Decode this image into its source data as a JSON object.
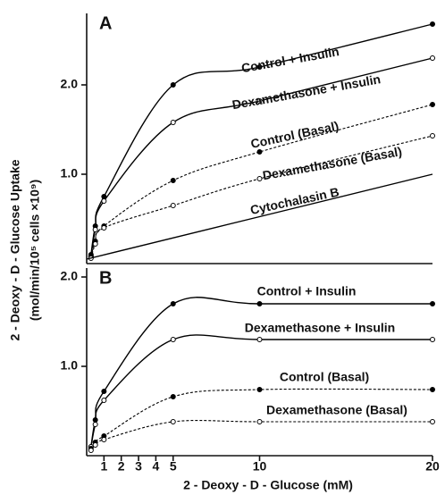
{
  "chart_data": [
    {
      "type": "line",
      "panel_label": "A",
      "ylabel": "2 - Deoxy - D - Glucose Uptake",
      "ylabel2": "(mol/min/10⁵ cells ×10⁹)",
      "xlim": [
        0,
        20
      ],
      "ylim": [
        0,
        2.8
      ],
      "yticks": [
        {
          "value": 1,
          "label": "1.0"
        },
        {
          "value": 2,
          "label": "2.0"
        }
      ],
      "series": [
        {
          "name": "Control + Insulin",
          "color": "#000000",
          "dashed": false,
          "marker": "filled",
          "x": [
            0.25,
            0.5,
            1,
            5,
            10,
            20
          ],
          "values": [
            0.1,
            0.42,
            0.75,
            2.0,
            2.2,
            2.68
          ]
        },
        {
          "name": "Dexamethasone + Insulin",
          "color": "#000000",
          "dashed": false,
          "marker": "open",
          "x": [
            0.25,
            0.5,
            1,
            5,
            10,
            20
          ],
          "values": [
            0.08,
            0.38,
            0.7,
            1.58,
            1.82,
            2.3
          ]
        },
        {
          "name": "Control (Basal)",
          "color": "#000000",
          "dashed": true,
          "marker": "filled",
          "x": [
            0.25,
            0.5,
            1,
            5,
            10,
            20
          ],
          "values": [
            0.08,
            0.25,
            0.42,
            0.93,
            1.25,
            1.78
          ]
        },
        {
          "name": "Dexamethasone (Basal)",
          "color": "#000000",
          "dashed": true,
          "marker": "open",
          "x": [
            0.25,
            0.5,
            1,
            5,
            10,
            20
          ],
          "values": [
            0.06,
            0.22,
            0.4,
            0.65,
            0.95,
            1.43
          ]
        },
        {
          "name": "Cytochalasin B",
          "color": "#000000",
          "dashed": false,
          "marker": "none",
          "x": [
            0,
            20
          ],
          "values": [
            0.05,
            1.0
          ]
        }
      ]
    },
    {
      "type": "line",
      "panel_label": "B",
      "xlabel": "2 - Deoxy - D - Glucose (mM)",
      "xlim": [
        0,
        20
      ],
      "xticks": [
        1,
        2,
        3,
        4,
        5,
        10,
        20
      ],
      "ylim": [
        0,
        2.1
      ],
      "yticks": [
        {
          "value": 1,
          "label": "1.0"
        },
        {
          "value": 2,
          "label": "2.0"
        }
      ],
      "series": [
        {
          "name": "Control + Insulin",
          "color": "#000000",
          "dashed": false,
          "marker": "filled",
          "x": [
            0.25,
            0.5,
            1,
            5,
            10,
            20
          ],
          "values": [
            0.1,
            0.4,
            0.72,
            1.7,
            1.7,
            1.7
          ]
        },
        {
          "name": "Dexamethasone + Insulin",
          "color": "#000000",
          "dashed": false,
          "marker": "open",
          "x": [
            0.25,
            0.5,
            1,
            5,
            10,
            20
          ],
          "values": [
            0.1,
            0.35,
            0.62,
            1.3,
            1.3,
            1.3
          ]
        },
        {
          "name": "Control (Basal)",
          "color": "#000000",
          "dashed": true,
          "marker": "filled",
          "x": [
            0.25,
            0.5,
            1,
            5,
            10,
            20
          ],
          "values": [
            0.08,
            0.15,
            0.22,
            0.66,
            0.74,
            0.74
          ]
        },
        {
          "name": "Dexamethasone (Basal)",
          "color": "#000000",
          "dashed": true,
          "marker": "open",
          "x": [
            0.25,
            0.5,
            1,
            5,
            10,
            20
          ],
          "values": [
            0.06,
            0.12,
            0.18,
            0.38,
            0.38,
            0.38
          ]
        }
      ]
    }
  ]
}
